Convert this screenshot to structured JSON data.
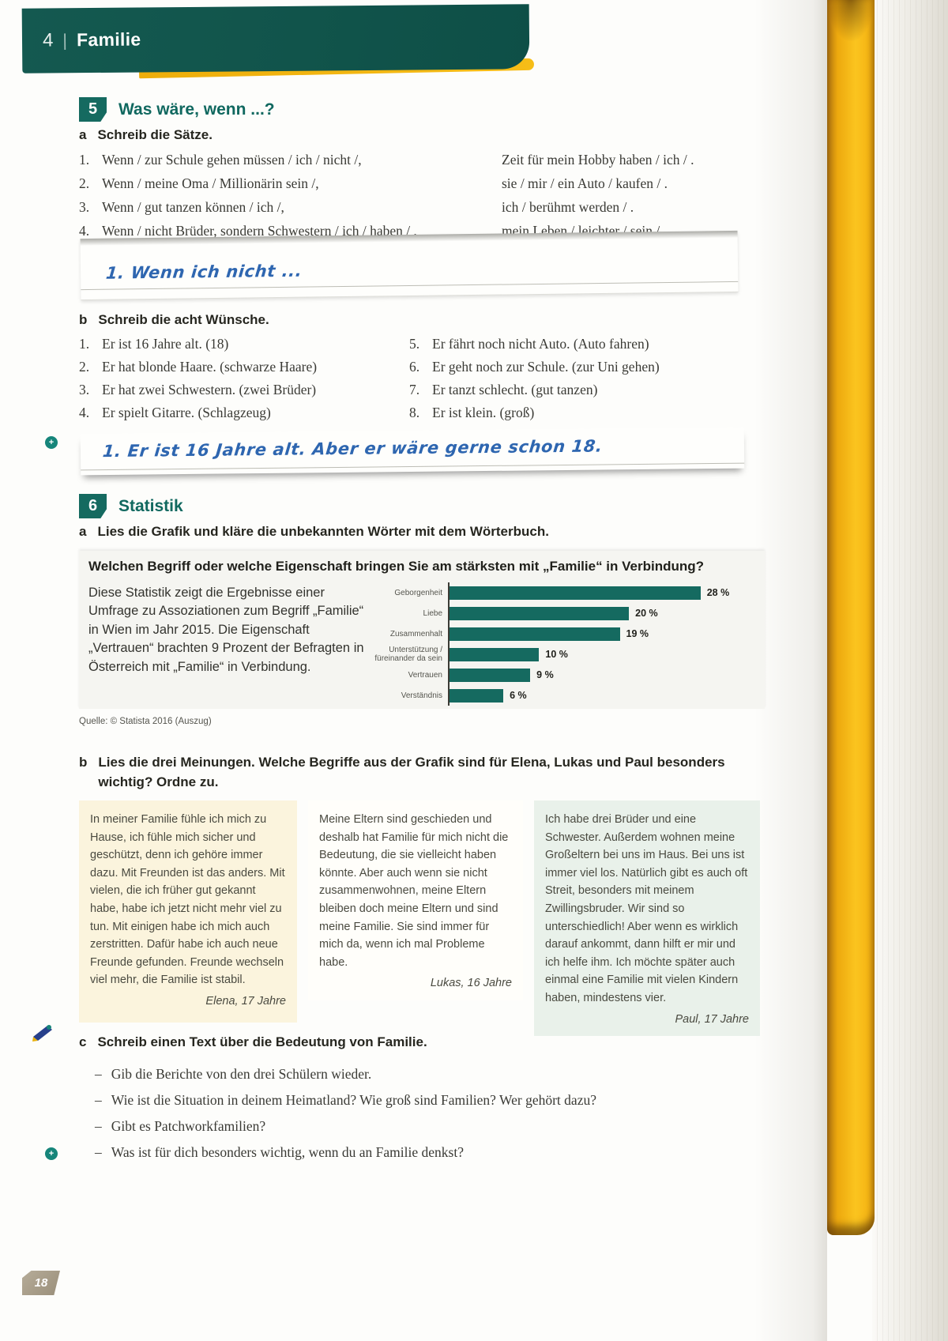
{
  "page": {
    "chapter_number": "4",
    "chapter_divider": "|",
    "chapter_title": "Familie",
    "page_number": "18"
  },
  "ex5": {
    "number": "5",
    "title": "Was wäre, wenn ...?",
    "a": {
      "letter": "a",
      "instruction": "Schreib die Sätze.",
      "rows": [
        {
          "num": "1.",
          "left": "Wenn / zur Schule gehen müssen / ich / nicht /,",
          "right": "Zeit für mein Hobby haben / ich / ."
        },
        {
          "num": "2.",
          "left": "Wenn / meine Oma / Millionärin sein /,",
          "right": "sie / mir / ein Auto / kaufen / ."
        },
        {
          "num": "3.",
          "left": "Wenn / gut tanzen können / ich /,",
          "right": "ich / berühmt werden / ."
        },
        {
          "num": "4.",
          "left": "Wenn / nicht Brüder, sondern Schwestern / ich / haben / ,",
          "right": "mein Leben / leichter / sein / ."
        }
      ],
      "handwriting": "1. Wenn ich nicht ..."
    },
    "b": {
      "letter": "b",
      "instruction": "Schreib die acht Wünsche.",
      "left_items": [
        {
          "num": "1.",
          "text": "Er ist 16 Jahre alt. (18)"
        },
        {
          "num": "2.",
          "text": "Er hat blonde Haare. (schwarze Haare)"
        },
        {
          "num": "3.",
          "text": "Er hat zwei Schwestern. (zwei Brüder)"
        },
        {
          "num": "4.",
          "text": "Er spielt Gitarre. (Schlagzeug)"
        }
      ],
      "right_items": [
        {
          "num": "5.",
          "text": "Er fährt noch nicht Auto. (Auto fahren)"
        },
        {
          "num": "6.",
          "text": "Er geht noch zur Schule. (zur Uni gehen)"
        },
        {
          "num": "7.",
          "text": "Er tanzt schlecht. (gut tanzen)"
        },
        {
          "num": "8.",
          "text": "Er ist klein. (groß)"
        }
      ],
      "handwriting": "1. Er ist 16 Jahre alt. Aber er wäre gerne schon 18."
    }
  },
  "ex6": {
    "number": "6",
    "title": "Statistik",
    "a": {
      "letter": "a",
      "instruction": "Lies die Grafik und kläre die unbekannten Wörter mit dem Wörterbuch."
    },
    "chart_intro": "Diese Statistik zeigt die Ergebnisse einer Umfrage zu Assoziationen zum Begriff „Familie“ in Wien im Jahr 2015. Die Eigenschaft „Vertrauen“ brachten 9 Prozent der Befragten in Österreich mit „Familie“ in Verbindung.",
    "b": {
      "letter": "b",
      "instruction": "Lies die drei Meinungen. Welche Begriffe aus der Grafik sind für Elena, Lukas und Paul besonders wichtig? Ordne zu."
    },
    "opinions": [
      {
        "text": "In meiner Familie fühle ich mich zu Hause, ich fühle mich sicher und geschützt, denn ich gehöre immer dazu. Mit Freunden ist das anders. Mit vielen, die ich früher gut gekannt habe, habe ich jetzt nicht mehr viel zu tun. Mit einigen habe ich mich auch zerstritten. Dafür habe ich auch neue Freunde gefunden. Freunde wechseln viel mehr, die Familie ist stabil.",
        "author": "Elena, 17 Jahre"
      },
      {
        "text": "Meine Eltern sind geschieden und deshalb hat Familie für mich nicht die Bedeutung, die sie vielleicht haben könnte. Aber auch wenn sie nicht zusammenwohnen, meine Eltern bleiben doch meine Eltern und sind meine Familie. Sie sind immer für mich da, wenn ich mal Probleme habe.",
        "author": "Lukas, 16 Jahre"
      },
      {
        "text": "Ich habe drei Brüder und eine Schwester. Außerdem wohnen meine Großeltern bei uns im Haus. Bei uns ist immer viel los. Natürlich gibt es auch oft Streit, besonders mit meinem Zwillingsbruder. Wir sind so unterschiedlich! Aber wenn es wirklich darauf ankommt, dann hilft er mir und ich helfe ihm. Ich möchte später auch einmal eine Familie mit vielen Kindern haben, mindestens vier.",
        "author": "Paul, 17 Jahre"
      }
    ],
    "c": {
      "letter": "c",
      "instruction": "Schreib einen Text über die Bedeutung von Familie.",
      "bullets": [
        {
          "dash": "–",
          "text": "Gib die Berichte von den drei Schülern wieder."
        },
        {
          "dash": "–",
          "text": "Wie ist die Situation in deinem Heimatland? Wie groß sind Familien? Wer gehört dazu?"
        },
        {
          "dash": "–",
          "text": "Gibt es Patchworkfamilien?"
        },
        {
          "dash": "–",
          "text": "Was ist für dich besonders wichtig, wenn du an Familie denkst?"
        }
      ]
    }
  },
  "chart_data": {
    "type": "bar",
    "orientation": "horizontal",
    "title": "Welchen Begriff oder welche Eigenschaft bringen Sie am stärksten mit „Familie“ in Verbindung?",
    "categories": [
      "Geborgenheit",
      "Liebe",
      "Zusammenhalt",
      "Unterstützung / füreinander da sein",
      "Vertrauen",
      "Verständnis"
    ],
    "values": [
      28,
      20,
      19,
      10,
      9,
      6
    ],
    "value_labels": [
      "28 %",
      "20 %",
      "19 %",
      "10 %",
      "9 %",
      "6 %"
    ],
    "xlabel": "",
    "ylabel": "",
    "xlim": [
      0,
      30
    ],
    "grid": false,
    "legend": "none",
    "bar_color": "#156a60",
    "source": "Quelle: © Statista 2016 (Auszug)"
  },
  "colors": {
    "teal_dark": "#11544b",
    "teal": "#156a60",
    "yellow": "#f4b511",
    "handwriting_blue": "#2e66b0"
  },
  "markers": {
    "plus": "+"
  }
}
